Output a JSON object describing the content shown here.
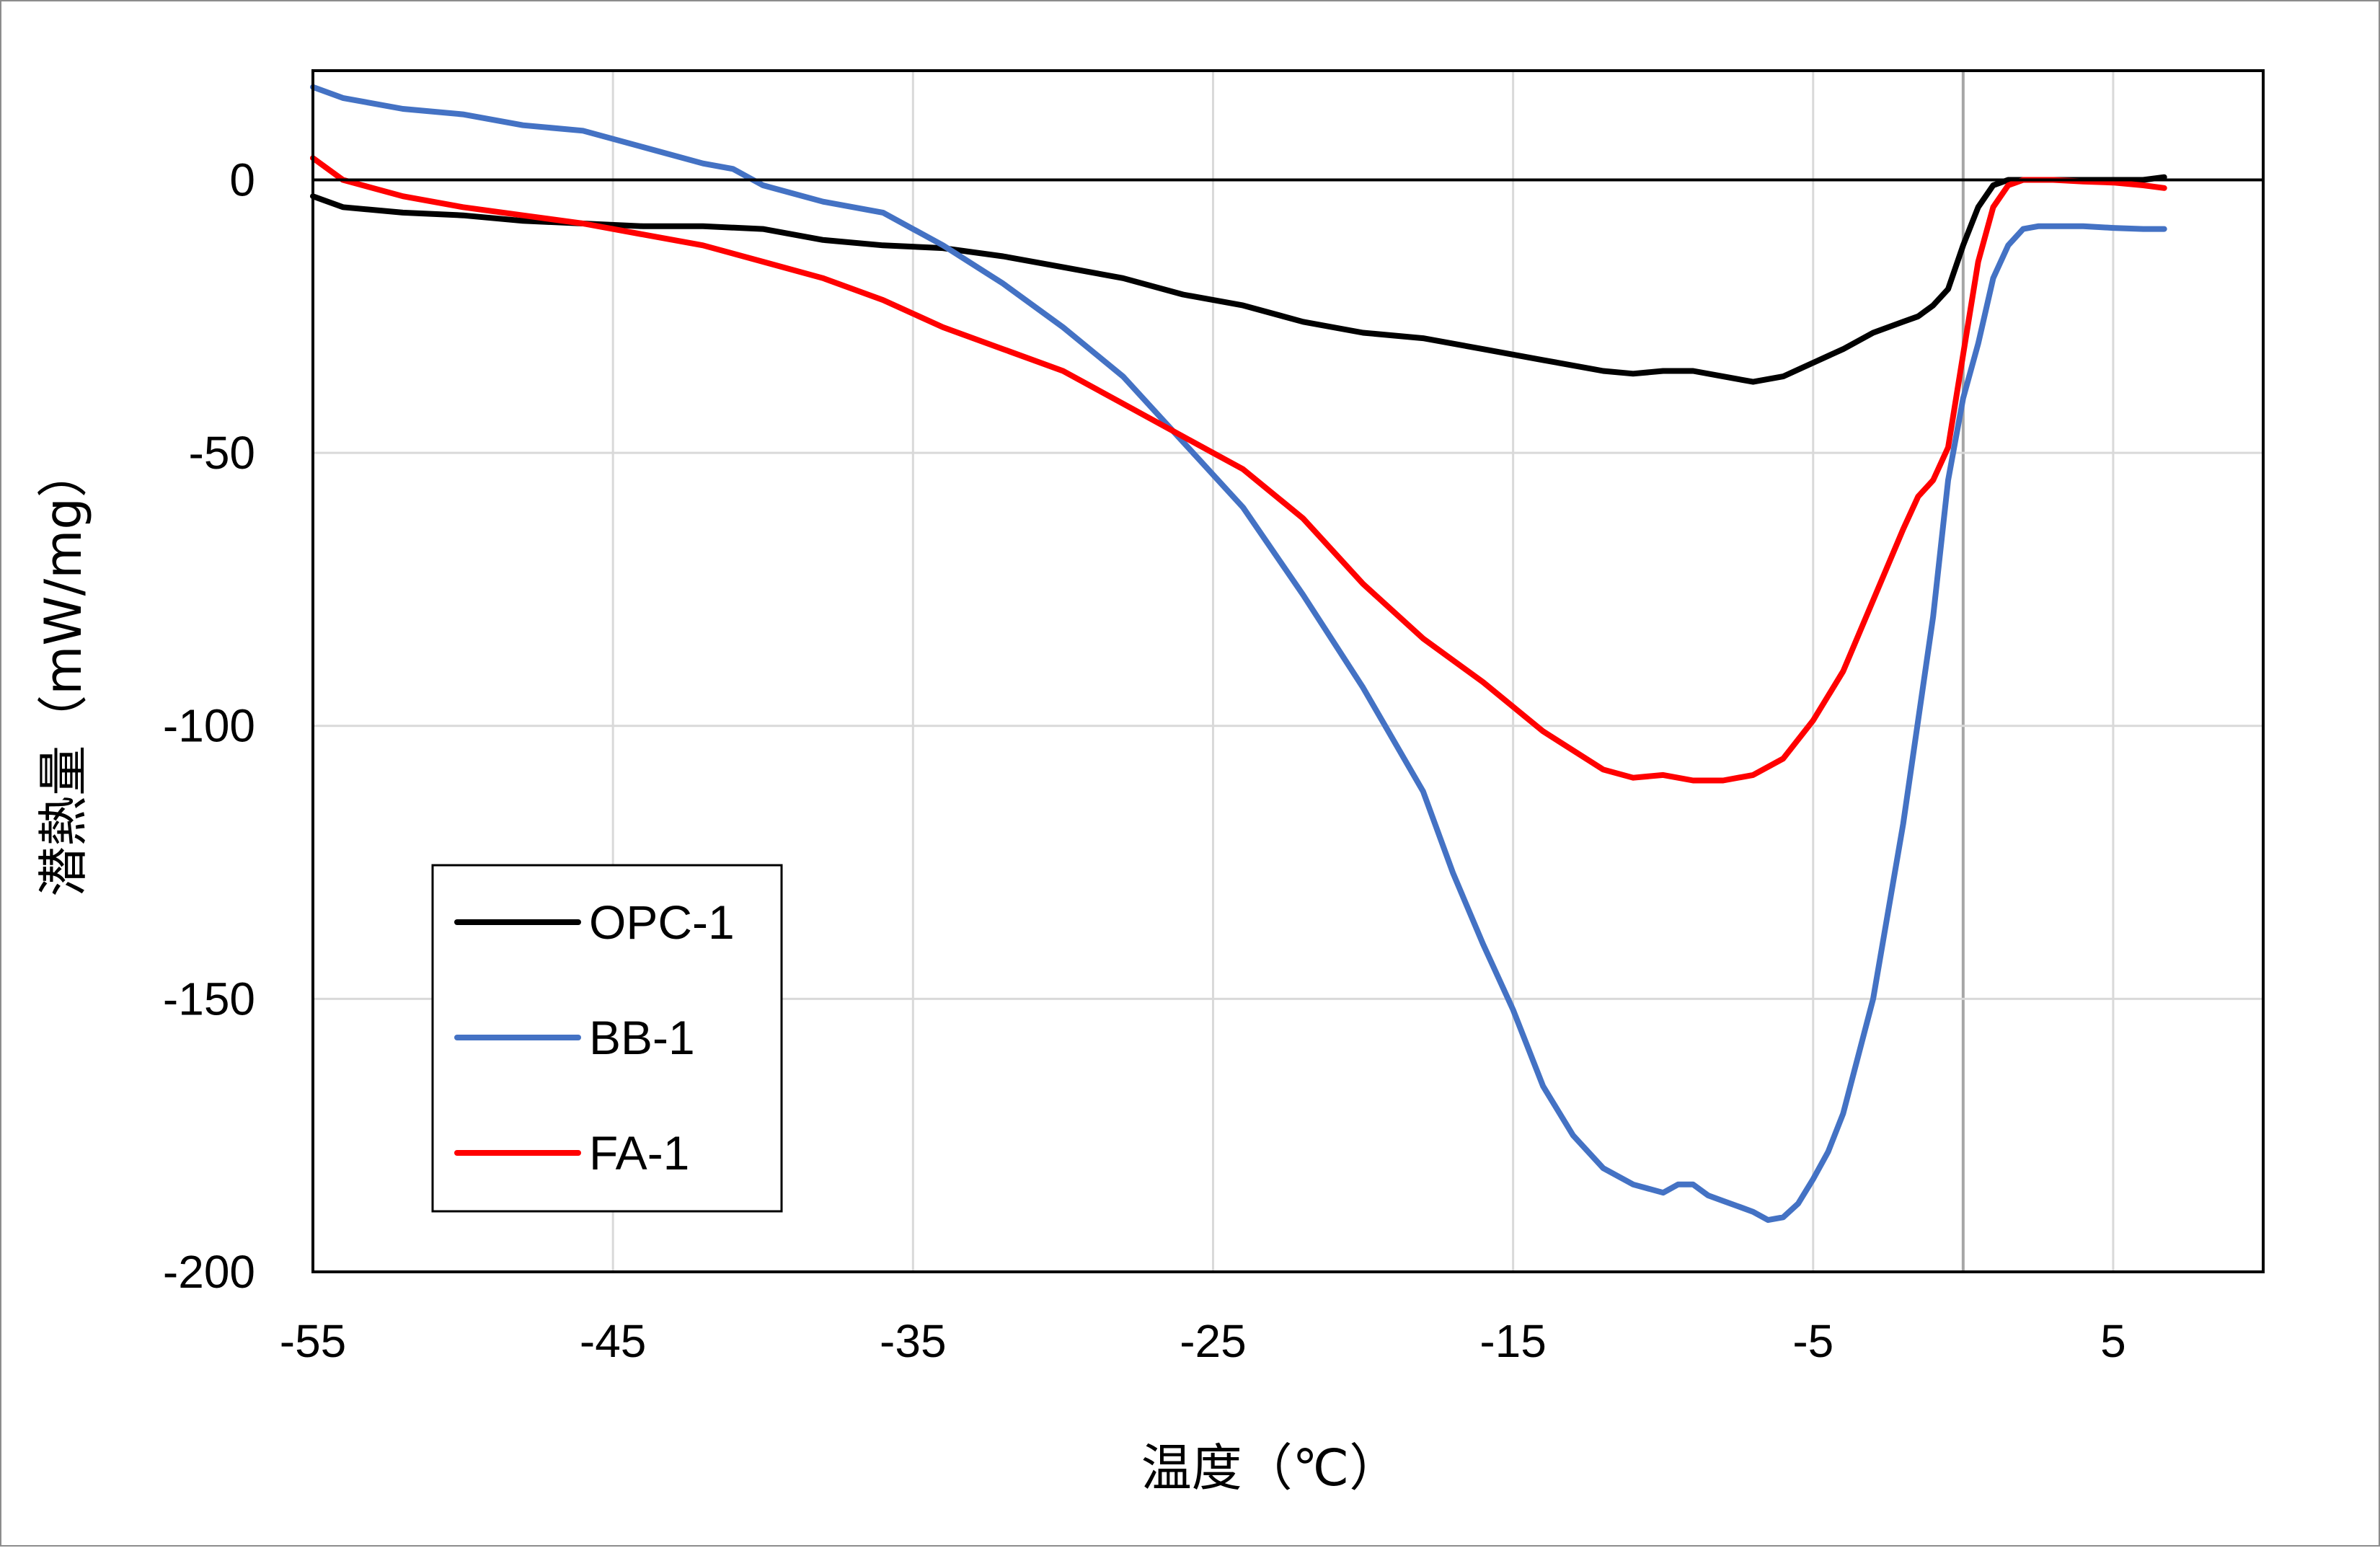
{
  "chart_data": {
    "type": "line",
    "title": "",
    "xlabel": "温度（℃）",
    "ylabel": "潜熱量（mW/mg）",
    "xlim": [
      -55,
      10
    ],
    "ylim": [
      -200,
      20
    ],
    "x_ticks": [
      -55,
      -45,
      -35,
      -25,
      -15,
      -5,
      5
    ],
    "x_tick_labels": [
      "-55",
      "-45",
      "-35",
      "-25",
      "-15",
      "-5",
      "5"
    ],
    "y_ticks": [
      0,
      -50,
      -100,
      -150,
      -200
    ],
    "y_tick_labels": [
      "0",
      "-50",
      "-100",
      "-150",
      "-200"
    ],
    "grid": true,
    "zero_line": true,
    "legend_position": "bottom-left",
    "series": [
      {
        "name": "OPC-1",
        "color": "#000000",
        "x": [
          -55,
          -54,
          -52,
          -50,
          -48,
          -46,
          -44,
          -42,
          -40,
          -38,
          -36,
          -34,
          -32,
          -30,
          -28,
          -26,
          -24,
          -22,
          -20,
          -18,
          -16,
          -14,
          -12,
          -11,
          -10,
          -9,
          -8,
          -7,
          -6,
          -5,
          -4,
          -3,
          -2,
          -1.5,
          -1,
          -0.5,
          0,
          0.5,
          1,
          1.5,
          2,
          3,
          4,
          5,
          6,
          6.7
        ],
        "y": [
          -3,
          -5,
          -6,
          -6.5,
          -7.5,
          -8,
          -8.5,
          -8.5,
          -9,
          -11,
          -12,
          -12.5,
          -14,
          -16,
          -18,
          -21,
          -23,
          -26,
          -28,
          -29,
          -31,
          -33,
          -35,
          -35.5,
          -35,
          -35,
          -36,
          -37,
          -36,
          -33.5,
          -31,
          -28,
          -26,
          -25,
          -23,
          -20,
          -12,
          -5,
          -1,
          0,
          0,
          0,
          0,
          0,
          0,
          0.5
        ]
      },
      {
        "name": "BB-1",
        "color": "#4472c4",
        "x": [
          -55,
          -54,
          -52,
          -50,
          -48,
          -46,
          -44,
          -42,
          -41,
          -40,
          -38,
          -36,
          -34,
          -32,
          -30,
          -28,
          -26,
          -24,
          -22,
          -20,
          -18,
          -17,
          -16,
          -15,
          -14,
          -13,
          -12,
          -11,
          -10,
          -9.5,
          -9,
          -8.5,
          -8,
          -7.5,
          -7,
          -6.5,
          -6,
          -5.5,
          -5,
          -4.5,
          -4,
          -3,
          -2,
          -1,
          -0.5,
          0,
          0.5,
          1,
          1.5,
          2,
          2.5,
          3,
          4,
          5,
          6,
          6.7
        ],
        "y": [
          17,
          15,
          13,
          12,
          10,
          9,
          6,
          3,
          2,
          -1,
          -4,
          -6,
          -12,
          -19,
          -27,
          -36,
          -48,
          -60,
          -76,
          -93,
          -112,
          -127,
          -140,
          -152,
          -166,
          -175,
          -181,
          -184,
          -185.5,
          -184,
          -184,
          -186,
          -187,
          -188,
          -189,
          -190.5,
          -190,
          -187.5,
          -183,
          -178,
          -171,
          -150,
          -118,
          -80,
          -55,
          -40,
          -30,
          -18,
          -12,
          -9,
          -8.5,
          -8.5,
          -8.5,
          -8.8,
          -9,
          -9
        ]
      },
      {
        "name": "FA-1",
        "color": "#ff0000",
        "x": [
          -55,
          -54,
          -52,
          -50,
          -48,
          -46,
          -44,
          -42,
          -40,
          -38,
          -36,
          -34,
          -32,
          -30,
          -28,
          -26,
          -24,
          -22,
          -20,
          -18,
          -16,
          -14,
          -12,
          -11,
          -10,
          -9,
          -8,
          -7,
          -6,
          -5,
          -4,
          -3,
          -2,
          -1.5,
          -1,
          -0.5,
          0,
          0.5,
          1,
          1.5,
          2,
          3,
          4,
          5,
          6,
          6.7
        ],
        "y": [
          4,
          0,
          -3,
          -5,
          -6.5,
          -8,
          -10,
          -12,
          -15,
          -18,
          -22,
          -27,
          -31,
          -35,
          -41,
          -47,
          -53,
          -62,
          -74,
          -84,
          -92,
          -101,
          -108,
          -109.5,
          -109,
          -110,
          -110,
          -109,
          -106,
          -99,
          -90,
          -77,
          -64,
          -58,
          -55,
          -49,
          -32,
          -15,
          -5,
          -1,
          0,
          0,
          -0.3,
          -0.5,
          -1,
          -1.5
        ]
      }
    ]
  }
}
